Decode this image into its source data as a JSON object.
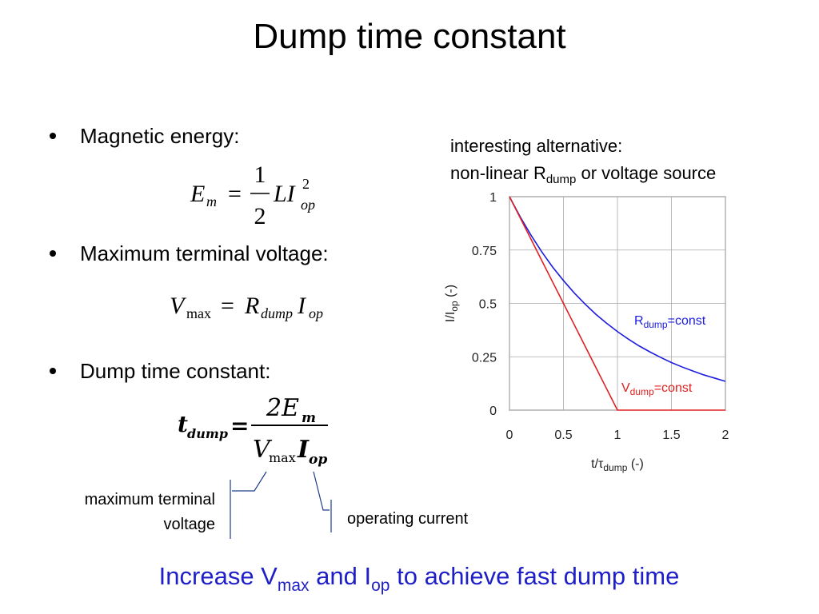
{
  "title": "Dump time constant",
  "bullets": [
    "Magnetic energy:",
    "Maximum terminal voltage:",
    "Dump time constant:"
  ],
  "equations": [
    {
      "lhs": "E",
      "lhs_sub": "m",
      "eq": "=",
      "num": "1",
      "den": "2",
      "body": "LI",
      "sup": "2",
      "sub": "op"
    },
    {
      "lhs": "V",
      "lhs_sub": "max",
      "eq": "=",
      "r": "R",
      "r_sub": "dump",
      "i": "I",
      "i_sub": "op"
    },
    {
      "lhs": "t",
      "lhs_sub": "dump",
      "eq": "=",
      "num": "2E",
      "num_sub": "m",
      "den_v": "V",
      "den_v_sub": "max",
      "den_i": "I",
      "den_i_sub": "op"
    }
  ],
  "annotations": {
    "alt_line1": "interesting alternative:",
    "alt_line2": {
      "main": "non-linear R",
      "sub": "dump",
      "rest": " or voltage source"
    },
    "vmax_label": [
      "maximum terminal",
      "voltage"
    ],
    "iop_label": "operating current"
  },
  "conclusion": {
    "a": "Increase V",
    "a_sub": "max",
    "b": " and I",
    "b_sub": "op",
    "c": " to achieve fast dump time"
  },
  "chart_data": {
    "type": "line",
    "x_label": {
      "main": "t/τ",
      "sub": "dump",
      "rest": " (-)"
    },
    "y_label": {
      "main": "I/I",
      "sub": "op",
      "rest": " (-)"
    },
    "x": [
      0,
      0.1,
      0.2,
      0.3,
      0.4,
      0.5,
      0.6,
      0.7,
      0.8,
      0.9,
      1,
      1.1,
      1.2,
      1.3,
      1.4,
      1.5,
      1.6,
      1.7,
      1.8,
      1.9,
      2
    ],
    "series": [
      {
        "label": {
          "main": "R",
          "sub": "dump",
          "rest": "=const"
        },
        "color": "#1c1ce0",
        "values": [
          1,
          0.905,
          0.819,
          0.741,
          0.67,
          0.607,
          0.549,
          0.497,
          0.449,
          0.407,
          0.368,
          0.333,
          0.301,
          0.273,
          0.247,
          0.223,
          0.202,
          0.183,
          0.165,
          0.15,
          0.135
        ]
      },
      {
        "label": {
          "main": "V",
          "sub": "dump",
          "rest": "=const"
        },
        "color": "#e02020",
        "values": [
          1,
          0.9,
          0.8,
          0.7,
          0.6,
          0.5,
          0.4,
          0.3,
          0.2,
          0.1,
          0,
          0,
          0,
          0,
          0,
          0,
          0,
          0,
          0,
          0,
          0
        ]
      }
    ],
    "xlim": [
      0,
      2
    ],
    "ylim": [
      0,
      1
    ],
    "xticks": [
      0,
      0.5,
      1,
      1.5,
      2
    ],
    "yticks": [
      0,
      0.25,
      0.5,
      0.75,
      1
    ],
    "grid": true
  }
}
